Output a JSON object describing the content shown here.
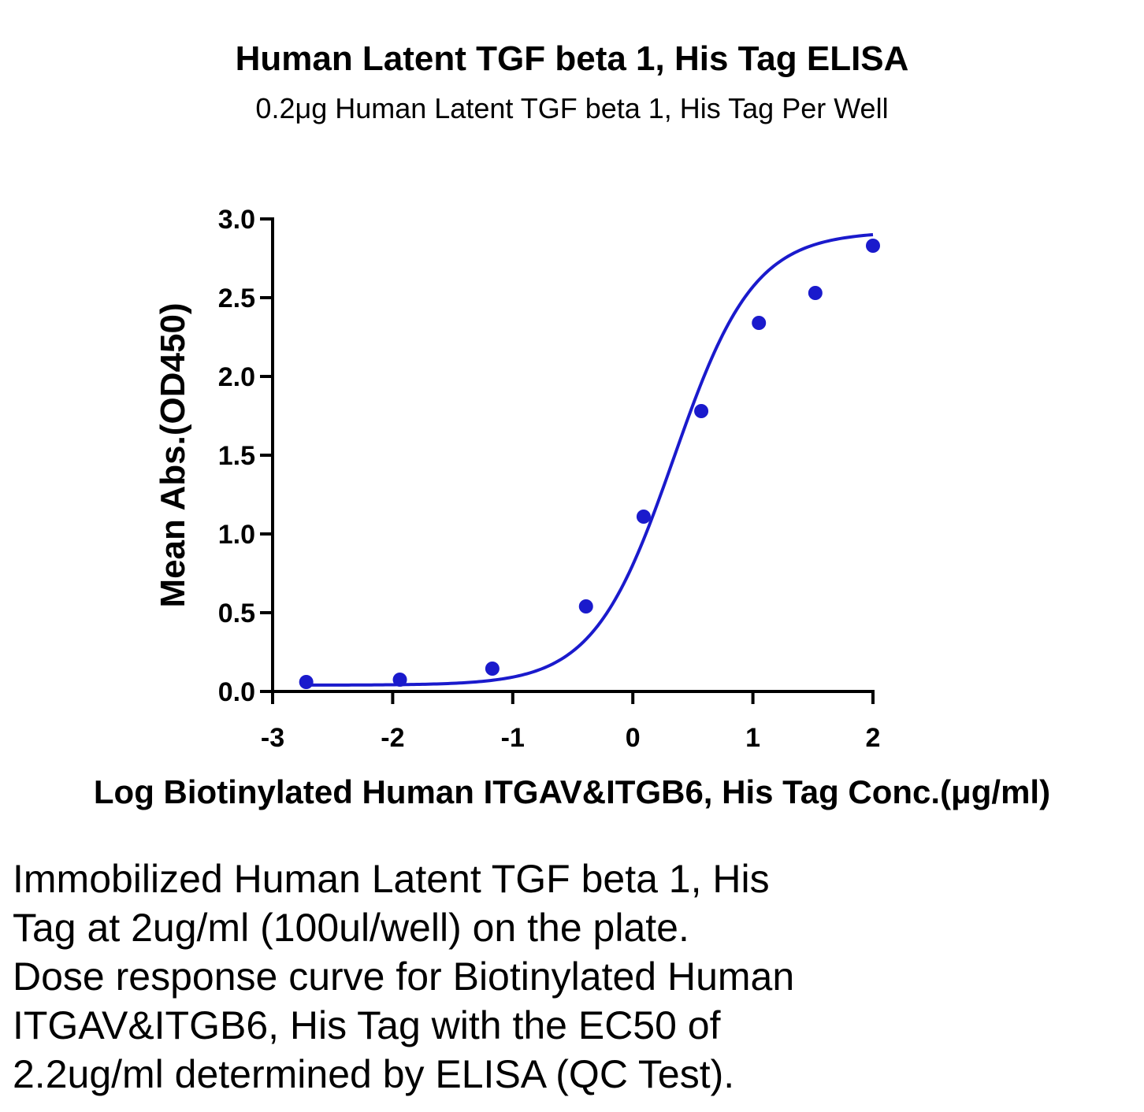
{
  "chart_data": {
    "type": "scatter",
    "title": "Human Latent TGF beta 1, His Tag ELISA",
    "subtitle": "0.2μg Human Latent TGF beta 1, His Tag Per Well",
    "xlabel": "Log Biotinylated Human ITGAV&ITGB6, His Tag Conc.(μg/ml)",
    "ylabel": "Mean Abs.(OD450)",
    "xlim": [
      -3,
      2
    ],
    "ylim": [
      0,
      3.0
    ],
    "xticks": [
      -3,
      -2,
      -1,
      0,
      1,
      2
    ],
    "xtick_labels": [
      "-3",
      "-2",
      "-1",
      "0",
      "1",
      "2"
    ],
    "yticks": [
      0,
      0.5,
      1.0,
      1.5,
      2.0,
      2.5,
      3.0
    ],
    "ytick_labels": [
      "0.0",
      "0.5",
      "1.0",
      "1.5",
      "2.0",
      "2.5",
      "3.0"
    ],
    "grid": false,
    "color": "#1a1acc",
    "series": [
      {
        "x": [
          -2.72,
          -1.94,
          -1.17,
          -0.39,
          0.09,
          0.57,
          1.05,
          1.52,
          2.0
        ],
        "y": [
          0.06,
          0.075,
          0.145,
          0.54,
          1.11,
          1.78,
          2.34,
          2.53,
          2.83
        ]
      }
    ],
    "fit_curve": {
      "type": "4PL",
      "bottom": 0.04,
      "top": 2.92,
      "log_ec50": 0.34,
      "hill": 1.3,
      "x_range": [
        -2.72,
        2.0
      ]
    }
  },
  "caption": {
    "lines": [
      "Immobilized Human Latent TGF beta 1, His",
      "Tag at 2ug/ml (100ul/well) on the plate.",
      "Dose response curve for Biotinylated Human",
      "ITGAV&ITGB6, His Tag with the EC50 of",
      "2.2ug/ml determined by ELISA (QC Test)."
    ]
  }
}
